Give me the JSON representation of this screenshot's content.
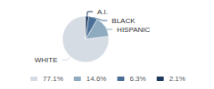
{
  "chart_data": {
    "type": "pie",
    "categories": [
      "WHITE",
      "HISPANIC",
      "BLACK",
      "A.I."
    ],
    "values": [
      77.1,
      14.6,
      6.3,
      2.1
    ],
    "value_labels": [
      "77.1%",
      "14.6%",
      "6.3%",
      "2.1%"
    ],
    "colors": [
      "#d6dce4",
      "#8fabbf",
      "#4a7098",
      "#1f3a5f"
    ],
    "legend": "bottom"
  }
}
